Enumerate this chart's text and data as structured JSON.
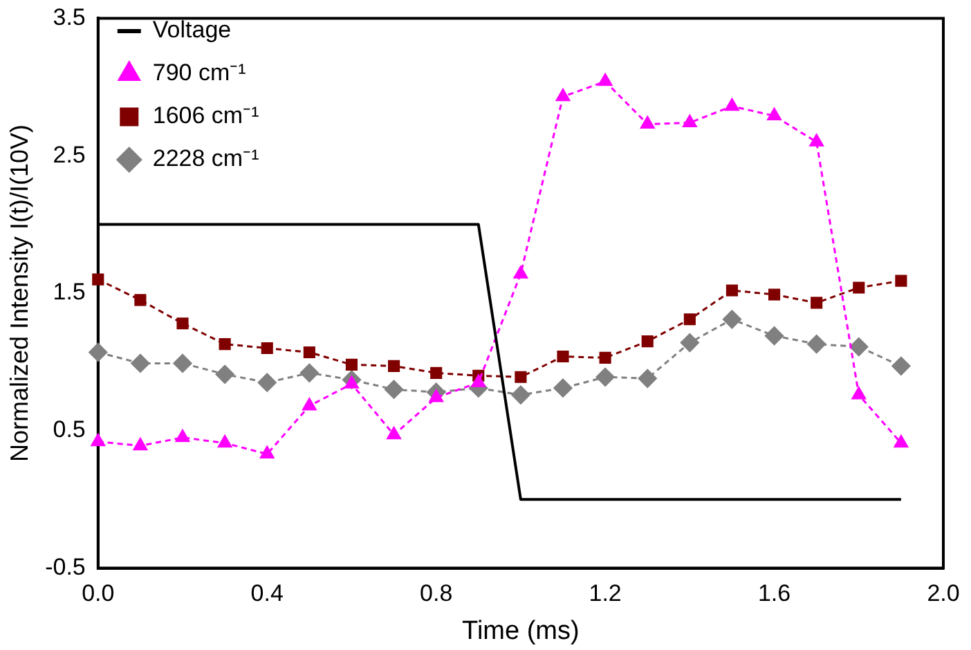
{
  "chart_data": {
    "type": "line",
    "xlabel": "Time (ms)",
    "ylabel": "Normalized Intensity I(t)/I(10V)",
    "xlim": [
      0,
      2
    ],
    "xticks": [
      {
        "value": 0,
        "label": "0.0"
      },
      0.4,
      0.8,
      1.2,
      1.6,
      {
        "value": 2,
        "label": "2.0"
      }
    ],
    "ylim": [
      -0.5,
      3.5
    ],
    "yticks": [
      -0.5,
      0.5,
      1.5,
      2.5,
      3.5
    ],
    "grid": false,
    "legend": "top left",
    "series": [
      {
        "name": "Voltage",
        "color": "#000000",
        "marker": "none",
        "line_style": "solid",
        "x": [
          0,
          0.9,
          1.0,
          1.9
        ],
        "values": [
          2,
          2,
          0,
          0
        ]
      },
      {
        "name": "790 cm⁻¹",
        "color": "#ff00ff",
        "marker": "triangle",
        "line_style": "dashed",
        "x": [
          0,
          0.1,
          0.2,
          0.3,
          0.4,
          0.5,
          0.6,
          0.7,
          0.8,
          0.9,
          1.0,
          1.1,
          1.2,
          1.3,
          1.4,
          1.5,
          1.6,
          1.7,
          1.8,
          1.9
        ],
        "values": [
          0.42,
          0.39,
          0.45,
          0.41,
          0.33,
          0.68,
          0.84,
          0.47,
          0.74,
          0.85,
          1.64,
          2.93,
          3.04,
          2.73,
          2.74,
          2.86,
          2.79,
          2.6,
          0.76,
          0.41
        ]
      },
      {
        "name": "1606 cm⁻¹",
        "color": "#800000",
        "marker": "square",
        "line_style": "dashed",
        "x": [
          0,
          0.1,
          0.2,
          0.3,
          0.4,
          0.5,
          0.6,
          0.7,
          0.8,
          0.9,
          1.0,
          1.1,
          1.2,
          1.3,
          1.4,
          1.5,
          1.6,
          1.7,
          1.8,
          1.9
        ],
        "values": [
          1.6,
          1.45,
          1.28,
          1.13,
          1.1,
          1.07,
          0.98,
          0.97,
          0.92,
          0.9,
          0.89,
          1.04,
          1.03,
          1.15,
          1.31,
          1.52,
          1.49,
          1.43,
          1.54,
          1.59
        ]
      },
      {
        "name": "2228 cm⁻¹",
        "color": "#808080",
        "marker": "diamond",
        "line_style": "dashed",
        "x": [
          0,
          0.1,
          0.2,
          0.3,
          0.4,
          0.5,
          0.6,
          0.7,
          0.8,
          0.9,
          1.0,
          1.1,
          1.2,
          1.3,
          1.4,
          1.5,
          1.6,
          1.7,
          1.8,
          1.9
        ],
        "values": [
          1.07,
          0.99,
          0.99,
          0.91,
          0.85,
          0.92,
          0.87,
          0.8,
          0.78,
          0.81,
          0.76,
          0.81,
          0.89,
          0.88,
          1.14,
          1.31,
          1.19,
          1.13,
          1.11,
          0.97
        ]
      }
    ]
  }
}
